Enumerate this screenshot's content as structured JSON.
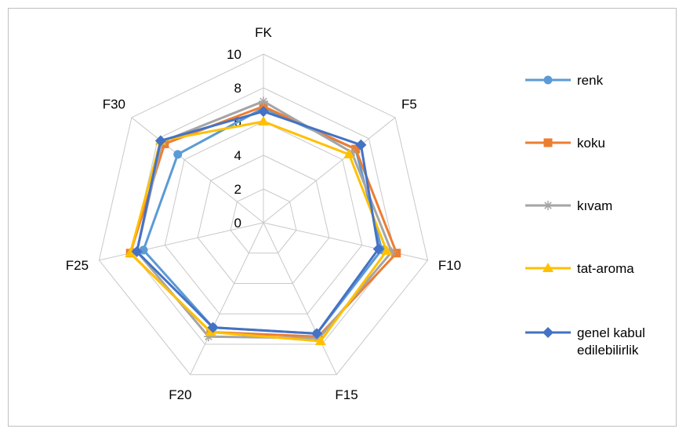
{
  "chart_data": {
    "type": "radar",
    "categories": [
      "FK",
      "F5",
      "F10",
      "F15",
      "F20",
      "F25",
      "F30"
    ],
    "rlim": [
      0,
      10
    ],
    "rticks": [
      "0",
      "2",
      "4",
      "6",
      "8",
      "10"
    ],
    "grid": true,
    "legend_position": "right",
    "series": [
      {
        "name": "renk",
        "color": "#5B9BD5",
        "marker": "circle",
        "values": [
          6.8,
          7.0,
          7.2,
          7.3,
          6.9,
          7.3,
          6.5
        ]
      },
      {
        "name": "koku",
        "color": "#ED7D31",
        "marker": "square",
        "values": [
          6.9,
          7.0,
          8.1,
          7.5,
          7.2,
          8.1,
          7.5
        ]
      },
      {
        "name": "kıvam",
        "color": "#A5A5A5",
        "marker": "star",
        "values": [
          7.2,
          6.7,
          7.8,
          7.6,
          7.5,
          7.7,
          7.7
        ]
      },
      {
        "name": "tat-aroma",
        "color": "#FFC000",
        "marker": "triangle",
        "values": [
          6.0,
          6.5,
          7.5,
          7.8,
          7.2,
          8.1,
          7.8
        ]
      },
      {
        "name": "genel kabul edilebilirlik",
        "color": "#4472C4",
        "marker": "diamond",
        "values": [
          6.6,
          7.4,
          7.0,
          7.3,
          6.9,
          7.7,
          7.8
        ]
      }
    ]
  }
}
